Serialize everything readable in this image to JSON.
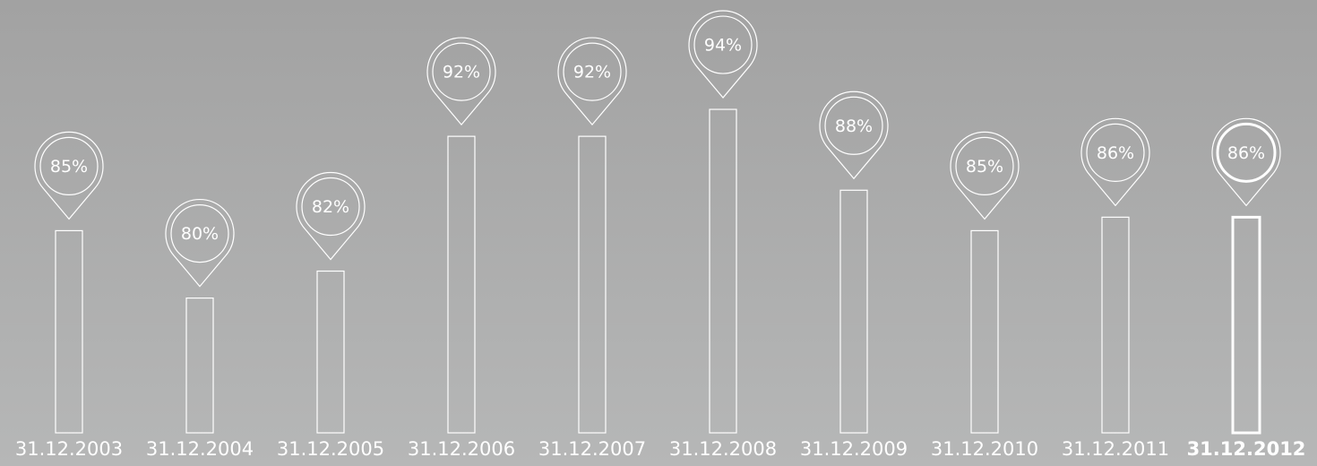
{
  "chart_data": {
    "type": "bar",
    "categories": [
      "31.12.2003",
      "31.12.2004",
      "31.12.2005",
      "31.12.2006",
      "31.12.2007",
      "31.12.2008",
      "31.12.2009",
      "31.12.2010",
      "31.12.2011",
      "31.12.2012"
    ],
    "values": [
      85,
      80,
      82,
      92,
      92,
      94,
      88,
      85,
      86,
      86
    ],
    "value_labels": [
      "85%",
      "80%",
      "82%",
      "92%",
      "92%",
      "94%",
      "88%",
      "85%",
      "86%",
      "86%"
    ],
    "color": "#ffffff",
    "ylim": [
      70,
      95
    ],
    "highlight_index": 9
  }
}
